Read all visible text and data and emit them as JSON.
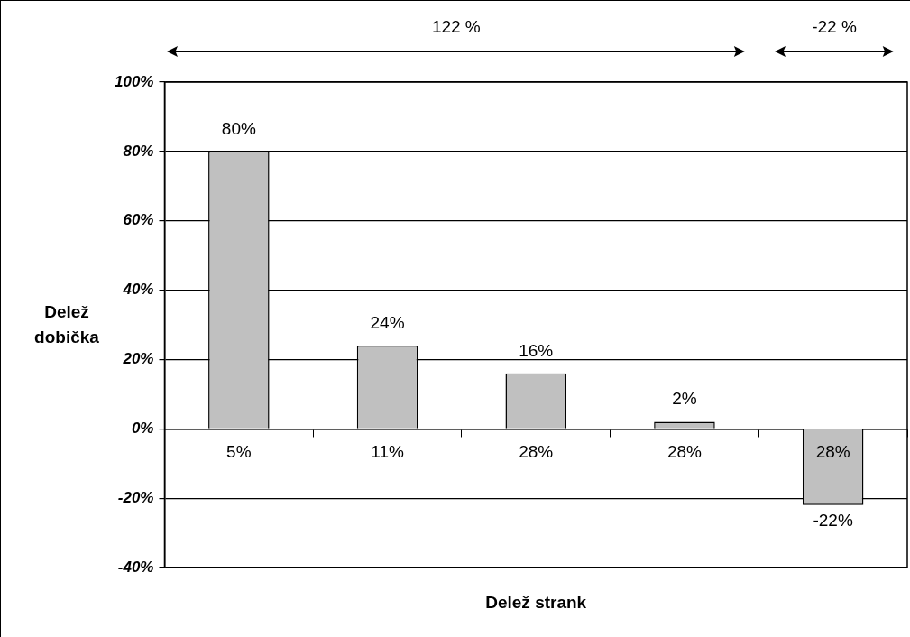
{
  "chart_data": {
    "type": "bar",
    "xlabel": "Delež strank",
    "ylabel": "Delež dobička",
    "annotations": [
      "122 %",
      "-22 %"
    ],
    "categories": [
      "5%",
      "11%",
      "28%",
      "28%",
      "28%"
    ],
    "values": [
      80,
      24,
      16,
      2,
      -22
    ],
    "value_labels": [
      "80%",
      "24%",
      "16%",
      "2%",
      "-22%"
    ],
    "color": "#c0c0c0",
    "ylim": [
      -40,
      100
    ],
    "yticks": [
      {
        "value": -40,
        "label": "-40%"
      },
      {
        "value": -20,
        "label": "-20%"
      },
      {
        "value": 0,
        "label": "0%"
      },
      {
        "value": 20,
        "label": "20%"
      },
      {
        "value": 40,
        "label": "40%"
      },
      {
        "value": 60,
        "label": "60%"
      },
      {
        "value": 80,
        "label": "80%"
      },
      {
        "value": 100,
        "label": "100%"
      }
    ],
    "grid": "y"
  }
}
